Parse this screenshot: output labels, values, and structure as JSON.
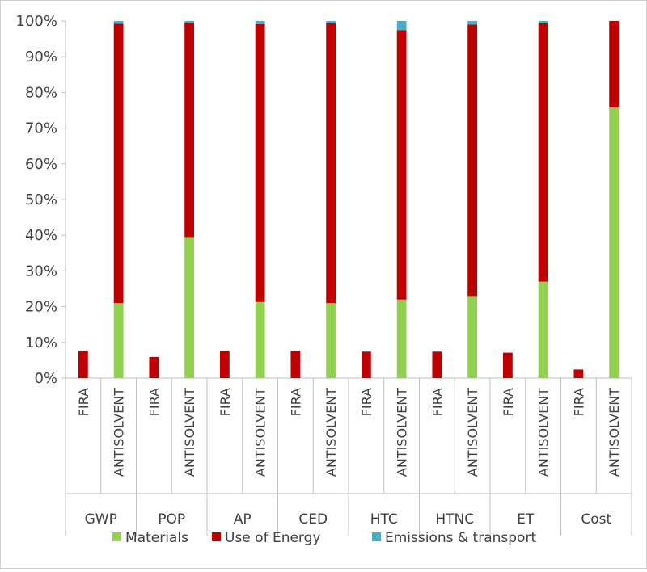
{
  "chart_data": {
    "type": "bar",
    "stacked": true,
    "percent": true,
    "title": "",
    "xlabel": "",
    "ylabel": "",
    "ylim": [
      0,
      100
    ],
    "yticks": [
      "0%",
      "10%",
      "20%",
      "30%",
      "40%",
      "50%",
      "60%",
      "70%",
      "80%",
      "90%",
      "100%"
    ],
    "groups": [
      "GWP",
      "POP",
      "AP",
      "CED",
      "HTC",
      "HTNC",
      "ET",
      "Cost"
    ],
    "subcategories": [
      "FIRA",
      "ANTISOLVENT"
    ],
    "series": [
      {
        "name": "Materials",
        "color": "#92d050",
        "values": [
          0,
          21,
          0,
          39.5,
          0,
          21.3,
          0,
          21,
          0,
          22,
          0,
          23,
          0,
          27,
          0,
          75.8
        ]
      },
      {
        "name": "Use of Energy",
        "color": "#c00000",
        "values": [
          7.6,
          78.2,
          5.9,
          60.0,
          7.6,
          77.8,
          7.6,
          78.4,
          7.4,
          75.4,
          7.4,
          76.0,
          7.1,
          72.4,
          2.4,
          24.2
        ]
      },
      {
        "name": "Emissions & transport",
        "color": "#4bacc6",
        "values": [
          0,
          0.8,
          0,
          0.5,
          0,
          0.9,
          0,
          0.6,
          0,
          2.6,
          0,
          1.0,
          0,
          0.6,
          0,
          0
        ]
      }
    ],
    "grid": false,
    "legend_position": "bottom"
  }
}
